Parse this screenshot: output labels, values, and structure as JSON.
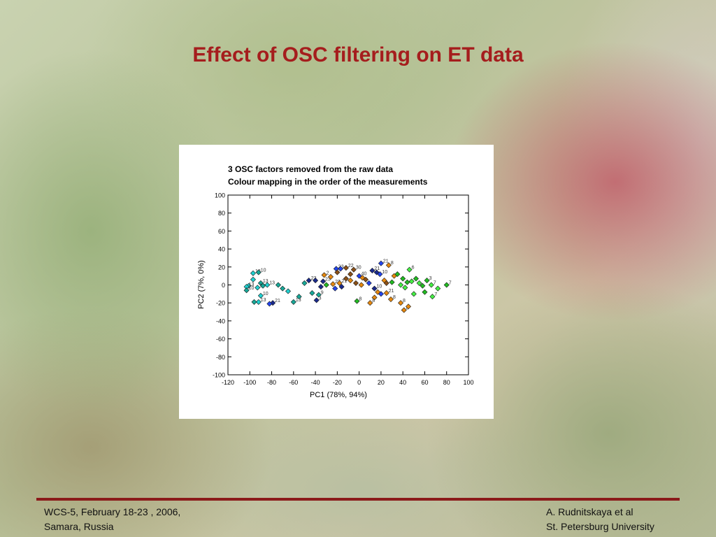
{
  "slide_title": "Effect of OSC filtering on ET data",
  "footer": {
    "left_line1": "WCS-5, February 18-23 , 2006,",
    "left_line2": "Samara, Russia",
    "right_line1": "A. Rudnitskaya et al",
    "right_line2": "St. Petersburg University"
  },
  "colors": {
    "title": "#a51d1d",
    "footer_rule": "#8b1a1a",
    "cyan": "#20d0d0",
    "teal": "#18a898",
    "navy": "#1a2a8c",
    "blue": "#2244ee",
    "orange": "#e6880e",
    "brown": "#8a5018",
    "green": "#22bb22",
    "lime": "#44ee44"
  },
  "chart_data": {
    "type": "scatter",
    "title_line1": "3 OSC factors removed from the raw data",
    "title_line2": "Colour mapping in the order of the measurements",
    "xlabel": "PC1 (78%, 94%)",
    "ylabel": "PC2 (7%, 0%)",
    "xlim": [
      -120,
      100
    ],
    "ylim": [
      -100,
      100
    ],
    "xticks": [
      "-120",
      "-100",
      "-80",
      "-60",
      "-40",
      "-20",
      "0",
      "20",
      "40",
      "60",
      "80",
      "100"
    ],
    "yticks": [
      "100",
      "80",
      "60",
      "40",
      "20",
      "0",
      "-20",
      "-40",
      "-60",
      "-80",
      "-100"
    ],
    "marker": "diamond",
    "points": [
      {
        "x": -97,
        "y": 13,
        "c": "cyan",
        "l": "13"
      },
      {
        "x": -92,
        "y": 14,
        "c": "teal",
        "l": "10"
      },
      {
        "x": -97,
        "y": 6,
        "c": "cyan",
        "l": ""
      },
      {
        "x": -101,
        "y": -1,
        "c": "cyan",
        "l": ""
      },
      {
        "x": -103,
        "y": -2,
        "c": "cyan",
        "l": "13"
      },
      {
        "x": -103,
        "y": -6,
        "c": "teal",
        "l": "10"
      },
      {
        "x": -90,
        "y": 2,
        "c": "teal",
        "l": "13"
      },
      {
        "x": -93,
        "y": -3,
        "c": "cyan",
        "l": "10"
      },
      {
        "x": -88,
        "y": -1,
        "c": "teal",
        "l": ""
      },
      {
        "x": -84,
        "y": 0,
        "c": "cyan",
        "l": "13"
      },
      {
        "x": -90,
        "y": -12,
        "c": "cyan",
        "l": "10"
      },
      {
        "x": -92,
        "y": -19,
        "c": "cyan",
        "l": "13"
      },
      {
        "x": -96,
        "y": -19,
        "c": "teal",
        "l": ""
      },
      {
        "x": -79,
        "y": -20,
        "c": "navy",
        "l": "21"
      },
      {
        "x": -82,
        "y": -21,
        "c": "blue",
        "l": ""
      },
      {
        "x": -74,
        "y": 0,
        "c": "teal",
        "l": ""
      },
      {
        "x": -70,
        "y": -4,
        "c": "teal",
        "l": ""
      },
      {
        "x": -65,
        "y": -7,
        "c": "cyan",
        "l": ""
      },
      {
        "x": -60,
        "y": -19,
        "c": "teal",
        "l": "13"
      },
      {
        "x": -55,
        "y": -13,
        "c": "teal",
        "l": ""
      },
      {
        "x": -50,
        "y": 2,
        "c": "teal",
        "l": ""
      },
      {
        "x": -46,
        "y": 5,
        "c": "navy",
        "l": "23"
      },
      {
        "x": -40,
        "y": 5,
        "c": "navy",
        "l": ""
      },
      {
        "x": -43,
        "y": -9,
        "c": "teal",
        "l": ""
      },
      {
        "x": -37,
        "y": -11,
        "c": "teal",
        "l": "9"
      },
      {
        "x": -39,
        "y": -17,
        "c": "navy",
        "l": "3"
      },
      {
        "x": -33,
        "y": 4,
        "c": "navy",
        "l": "23"
      },
      {
        "x": -30,
        "y": 0,
        "c": "green",
        "l": ""
      },
      {
        "x": -35,
        "y": -2,
        "c": "navy",
        "l": ""
      },
      {
        "x": -32,
        "y": 11,
        "c": "orange",
        "l": "2"
      },
      {
        "x": -26,
        "y": 9,
        "c": "orange",
        "l": ""
      },
      {
        "x": -21,
        "y": 18,
        "c": "blue",
        "l": "23"
      },
      {
        "x": -17,
        "y": 18,
        "c": "blue",
        "l": ""
      },
      {
        "x": -12,
        "y": 19,
        "c": "brown",
        "l": "22"
      },
      {
        "x": -20,
        "y": 14,
        "c": "brown",
        "l": ""
      },
      {
        "x": -24,
        "y": 1,
        "c": "orange",
        "l": "22"
      },
      {
        "x": -18,
        "y": 2,
        "c": "orange",
        "l": "21"
      },
      {
        "x": -22,
        "y": -4,
        "c": "blue",
        "l": ""
      },
      {
        "x": -16,
        "y": -2,
        "c": "navy",
        "l": ""
      },
      {
        "x": -12,
        "y": 7,
        "c": "brown",
        "l": ""
      },
      {
        "x": -8,
        "y": 5,
        "c": "orange",
        "l": ""
      },
      {
        "x": -8,
        "y": 12,
        "c": "brown",
        "l": ""
      },
      {
        "x": -5,
        "y": 17,
        "c": "brown",
        "l": "30"
      },
      {
        "x": 0,
        "y": 10,
        "c": "blue",
        "l": "40"
      },
      {
        "x": 3,
        "y": 8,
        "c": "orange",
        "l": ""
      },
      {
        "x": 6,
        "y": 6,
        "c": "brown",
        "l": ""
      },
      {
        "x": 9,
        "y": 2,
        "c": "blue",
        "l": ""
      },
      {
        "x": 2,
        "y": 0,
        "c": "orange",
        "l": ""
      },
      {
        "x": -3,
        "y": 2,
        "c": "brown",
        "l": ""
      },
      {
        "x": 12,
        "y": 16,
        "c": "navy",
        "l": "21"
      },
      {
        "x": 16,
        "y": 14,
        "c": "navy",
        "l": ""
      },
      {
        "x": 19,
        "y": 12,
        "c": "blue",
        "l": "10"
      },
      {
        "x": 20,
        "y": 24,
        "c": "blue",
        "l": "21"
      },
      {
        "x": 27,
        "y": 22,
        "c": "orange",
        "l": "8"
      },
      {
        "x": 23,
        "y": 5,
        "c": "orange",
        "l": ""
      },
      {
        "x": 25,
        "y": 2,
        "c": "brown",
        "l": ""
      },
      {
        "x": 30,
        "y": 3,
        "c": "green",
        "l": ""
      },
      {
        "x": 32,
        "y": 10,
        "c": "orange",
        "l": ""
      },
      {
        "x": 14,
        "y": -4,
        "c": "navy",
        "l": "10"
      },
      {
        "x": 17,
        "y": -8,
        "c": "orange",
        "l": ""
      },
      {
        "x": 20,
        "y": -10,
        "c": "blue",
        "l": ""
      },
      {
        "x": 14,
        "y": -14,
        "c": "orange",
        "l": ""
      },
      {
        "x": 10,
        "y": -20,
        "c": "orange",
        "l": "8"
      },
      {
        "x": 25,
        "y": -9,
        "c": "orange",
        "l": "21"
      },
      {
        "x": 29,
        "y": -16,
        "c": "orange",
        "l": "8"
      },
      {
        "x": -2,
        "y": -18,
        "c": "green",
        "l": "8"
      },
      {
        "x": 35,
        "y": 12,
        "c": "green",
        "l": ""
      },
      {
        "x": 40,
        "y": 7,
        "c": "green",
        "l": ""
      },
      {
        "x": 38,
        "y": 0,
        "c": "lime",
        "l": ""
      },
      {
        "x": 44,
        "y": 3,
        "c": "green",
        "l": ""
      },
      {
        "x": 42,
        "y": -3,
        "c": "lime",
        "l": ""
      },
      {
        "x": 48,
        "y": 4,
        "c": "lime",
        "l": ""
      },
      {
        "x": 46,
        "y": 17,
        "c": "lime",
        "l": "6"
      },
      {
        "x": 52,
        "y": 7,
        "c": "green",
        "l": ""
      },
      {
        "x": 55,
        "y": 2,
        "c": "lime",
        "l": ""
      },
      {
        "x": 58,
        "y": -1,
        "c": "green",
        "l": ""
      },
      {
        "x": 50,
        "y": -10,
        "c": "lime",
        "l": ""
      },
      {
        "x": 38,
        "y": -20,
        "c": "orange",
        "l": "8"
      },
      {
        "x": 41,
        "y": -28,
        "c": "orange",
        "l": "8"
      },
      {
        "x": 45,
        "y": -24,
        "c": "orange",
        "l": ""
      },
      {
        "x": 62,
        "y": 5,
        "c": "green",
        "l": "3"
      },
      {
        "x": 66,
        "y": 0,
        "c": "lime",
        "l": "7"
      },
      {
        "x": 60,
        "y": -8,
        "c": "green",
        "l": ""
      },
      {
        "x": 67,
        "y": -13,
        "c": "lime",
        "l": "7"
      },
      {
        "x": 80,
        "y": 0,
        "c": "green",
        "l": "7"
      },
      {
        "x": 72,
        "y": -4,
        "c": "lime",
        "l": ""
      }
    ]
  }
}
